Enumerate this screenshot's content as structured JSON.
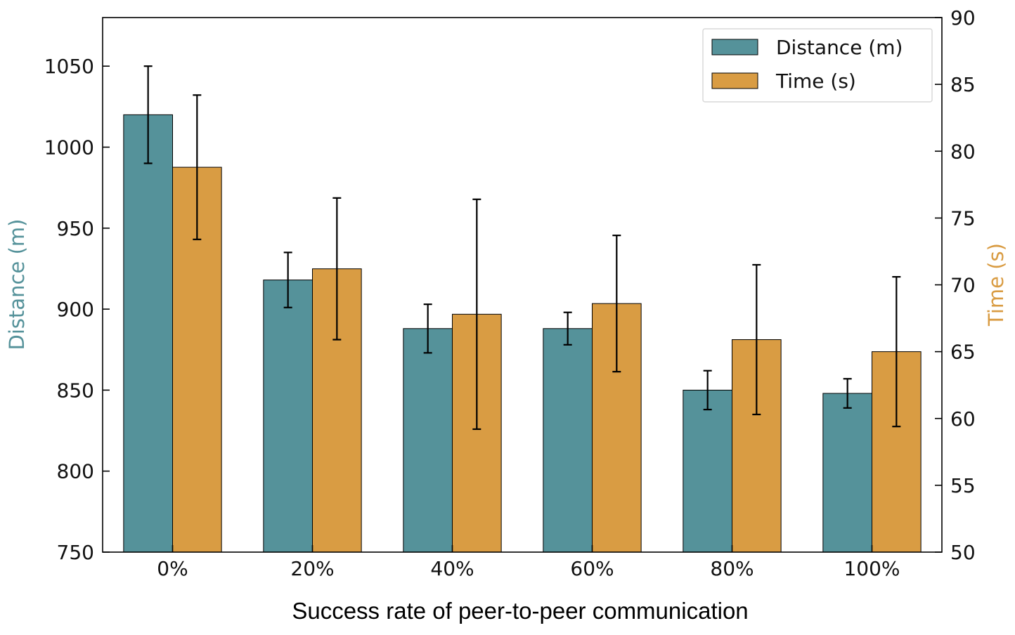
{
  "chart_data": {
    "type": "bar",
    "categories": [
      "0%",
      "20%",
      "40%",
      "60%",
      "80%",
      "100%"
    ],
    "series": [
      {
        "name": "Distance (m)",
        "axis": "left",
        "color": "#55929A",
        "values": [
          1020,
          918,
          888,
          888,
          850,
          848
        ],
        "errors": [
          30,
          17,
          15,
          10,
          12,
          9
        ]
      },
      {
        "name": "Time (s)",
        "axis": "right",
        "color": "#D99C43",
        "values": [
          78.8,
          71.2,
          67.8,
          68.6,
          65.9,
          65.0
        ],
        "errors": [
          5.4,
          5.3,
          8.6,
          5.1,
          5.6,
          5.6
        ]
      }
    ],
    "xlabel": "Success rate of peer-to-peer communication",
    "ylabel_left": "Distance (m)",
    "ylabel_right": "Time (s)",
    "ylim_left": [
      750,
      1080
    ],
    "ylim_right": [
      50,
      90
    ],
    "yticks_left": [
      750,
      800,
      850,
      900,
      950,
      1000,
      1050
    ],
    "yticks_right": [
      50,
      55,
      60,
      65,
      70,
      75,
      80,
      85,
      90
    ],
    "yticklabels_left": [
      "750",
      "800",
      "850",
      "900",
      "950",
      "1000",
      "1050"
    ],
    "yticklabels_right": [
      "50",
      "55",
      "60",
      "65",
      "70",
      "75",
      "80",
      "85",
      "90"
    ],
    "legend_position": "top-right",
    "grid": false
  },
  "legend": {
    "items": [
      {
        "label": "Distance (m)",
        "color": "#55929A"
      },
      {
        "label": "Time (s)",
        "color": "#D99C43"
      }
    ]
  }
}
